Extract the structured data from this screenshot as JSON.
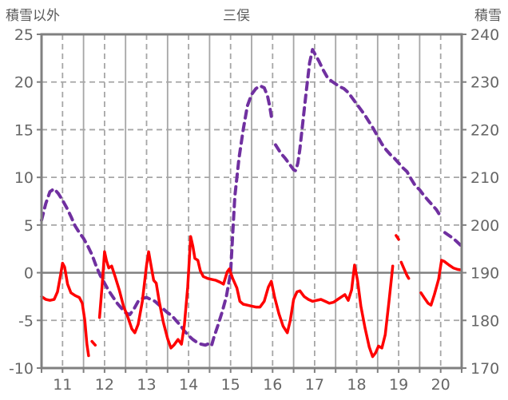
{
  "header": {
    "left_axis_caption": "積雪以外",
    "title": "三俣",
    "right_axis_caption": "積雪"
  },
  "colors": {
    "series_other": "#ff0000",
    "series_snow": "#7030a0",
    "grid": "#a6a6a6",
    "axis_frame": "#808080",
    "zero_line": "#808080",
    "text": "#666666"
  },
  "chart_data": {
    "type": "line",
    "title": "三俣",
    "grid": {
      "vertical_solid_every_day": true,
      "vertical_dashed_at_half_day": true,
      "horizontal_dashed": true,
      "zero_line_solid": true
    },
    "x_axis": {
      "range": [
        11,
        21
      ],
      "tick_labels": [
        11,
        12,
        13,
        14,
        15,
        16,
        17,
        18,
        19,
        20
      ],
      "minor_tick_step": 0.5
    },
    "y_left": {
      "label": "積雪以外",
      "range": [
        -10,
        25
      ],
      "ticks": [
        25,
        20,
        15,
        10,
        5,
        0,
        -5,
        -10
      ]
    },
    "y_right": {
      "label": "積雪",
      "range": [
        170,
        240
      ],
      "ticks": [
        240,
        230,
        220,
        210,
        200,
        190,
        180,
        170
      ]
    },
    "series": [
      {
        "name": "積雪",
        "axis": "right",
        "color": "#7030a0",
        "style": "dashed",
        "width": 4,
        "segments": [
          [
            [
              11.0,
              201
            ],
            [
              11.1,
              204.5
            ],
            [
              11.2,
              207
            ],
            [
              11.3,
              207.6
            ],
            [
              11.4,
              206.6
            ],
            [
              11.5,
              205.2
            ],
            [
              11.6,
              203.6
            ],
            [
              11.7,
              201.8
            ],
            [
              11.8,
              199.8
            ],
            [
              11.9,
              198.4
            ],
            [
              12.0,
              197.2
            ],
            [
              12.1,
              195.6
            ],
            [
              12.2,
              193.8
            ],
            [
              12.3,
              191.4
            ],
            [
              12.4,
              189.4
            ],
            [
              12.5,
              187.8
            ],
            [
              12.6,
              186.2
            ],
            [
              12.7,
              184.9
            ],
            [
              12.8,
              183.6
            ],
            [
              12.9,
              182.6
            ],
            [
              13.0,
              181.6
            ],
            [
              13.1,
              181.2
            ],
            [
              13.2,
              182.4
            ],
            [
              13.3,
              184
            ],
            [
              13.4,
              184.6
            ],
            [
              13.5,
              184.8
            ],
            [
              13.6,
              184.4
            ],
            [
              13.7,
              184
            ],
            [
              13.8,
              183.2
            ],
            [
              13.9,
              182.4
            ],
            [
              14.0,
              181.6
            ],
            [
              14.1,
              181
            ],
            [
              14.2,
              180
            ],
            [
              14.3,
              179
            ],
            [
              14.4,
              177.8
            ],
            [
              14.5,
              176.8
            ],
            [
              14.6,
              176
            ],
            [
              14.7,
              175.4
            ],
            [
              14.8,
              175
            ],
            [
              14.9,
              174.8
            ],
            [
              15.0,
              175.2
            ],
            [
              15.05,
              174.8
            ],
            [
              15.1,
              176.4
            ],
            [
              15.2,
              179
            ],
            [
              15.3,
              181.8
            ],
            [
              15.4,
              185
            ],
            [
              15.5,
              190
            ],
            [
              15.55,
              198
            ],
            [
              15.6,
              206
            ],
            [
              15.7,
              214
            ],
            [
              15.8,
              220
            ],
            [
              15.9,
              225
            ],
            [
              16.0,
              227.4
            ],
            [
              16.1,
              228.6
            ],
            [
              16.2,
              229.2
            ],
            [
              16.3,
              228.8
            ],
            [
              16.38,
              227
            ],
            [
              16.43,
              225
            ],
            [
              16.47,
              222.8
            ]
          ],
          [
            [
              16.57,
              216.8
            ],
            [
              16.7,
              215
            ],
            [
              16.8,
              214
            ],
            [
              16.9,
              212.8
            ],
            [
              17.0,
              211.6
            ],
            [
              17.05,
              211.4
            ],
            [
              17.1,
              213
            ],
            [
              17.15,
              216
            ],
            [
              17.2,
              220
            ],
            [
              17.3,
              228
            ],
            [
              17.38,
              234
            ],
            [
              17.45,
              236.8
            ],
            [
              17.5,
              236
            ],
            [
              17.6,
              234.4
            ],
            [
              17.7,
              232.6
            ],
            [
              17.8,
              231
            ],
            [
              17.9,
              230.2
            ],
            [
              18.0,
              229.6
            ],
            [
              18.1,
              229
            ],
            [
              18.2,
              228.6
            ],
            [
              18.3,
              227.8
            ],
            [
              18.4,
              226.6
            ],
            [
              18.5,
              225.4
            ],
            [
              18.6,
              224.2
            ],
            [
              18.7,
              223
            ],
            [
              18.8,
              221.6
            ],
            [
              18.9,
              220.2
            ],
            [
              19.0,
              218.6
            ],
            [
              19.1,
              217
            ],
            [
              19.2,
              215.8
            ],
            [
              19.3,
              214.8
            ],
            [
              19.4,
              214
            ],
            [
              19.5,
              213
            ],
            [
              19.6,
              212
            ],
            [
              19.7,
              211.2
            ],
            [
              19.8,
              209.6
            ],
            [
              19.9,
              208.2
            ],
            [
              20.0,
              207.4
            ],
            [
              20.1,
              206.2
            ],
            [
              20.2,
              205.2
            ],
            [
              20.3,
              204.2
            ],
            [
              20.4,
              203.2
            ],
            [
              20.5,
              201.8
            ]
          ],
          [
            [
              20.6,
              198.4
            ],
            [
              20.7,
              197.8
            ],
            [
              20.8,
              197.2
            ],
            [
              20.9,
              196.4
            ],
            [
              20.97,
              195.8
            ]
          ]
        ]
      },
      {
        "name": "積雪以外",
        "axis": "left",
        "color": "#ff0000",
        "style": "solid",
        "width": 3.5,
        "segments": [
          [
            [
              11.0,
              -2.5
            ],
            [
              11.1,
              -2.8
            ],
            [
              11.2,
              -2.9
            ],
            [
              11.3,
              -2.8
            ],
            [
              11.38,
              -2.0
            ],
            [
              11.45,
              -0.3
            ],
            [
              11.5,
              1.0
            ],
            [
              11.55,
              0.6
            ],
            [
              11.62,
              -1.2
            ],
            [
              11.7,
              -2.1
            ],
            [
              11.8,
              -2.4
            ],
            [
              11.9,
              -2.6
            ],
            [
              11.97,
              -3.2
            ],
            [
              12.03,
              -5.0
            ],
            [
              12.08,
              -7.5
            ],
            [
              12.12,
              -8.7
            ]
          ],
          [
            [
              12.2,
              -7.2
            ],
            [
              12.28,
              -7.6
            ]
          ],
          [
            [
              12.38,
              -4.7
            ],
            [
              12.44,
              -1.5
            ],
            [
              12.5,
              2.2
            ],
            [
              12.55,
              1.2
            ],
            [
              12.6,
              0.5
            ],
            [
              12.67,
              0.7
            ],
            [
              12.75,
              -0.4
            ],
            [
              12.85,
              -1.8
            ],
            [
              12.95,
              -3.5
            ],
            [
              13.05,
              -4.6
            ],
            [
              13.15,
              -5.9
            ],
            [
              13.22,
              -6.3
            ],
            [
              13.3,
              -5.4
            ],
            [
              13.4,
              -3.0
            ],
            [
              13.5,
              0.8
            ],
            [
              13.55,
              2.2
            ],
            [
              13.6,
              0.9
            ],
            [
              13.67,
              -0.8
            ],
            [
              13.73,
              -1.1
            ],
            [
              13.8,
              -3.0
            ],
            [
              13.9,
              -5.2
            ],
            [
              14.0,
              -6.9
            ],
            [
              14.08,
              -7.9
            ],
            [
              14.15,
              -7.6
            ],
            [
              14.25,
              -7.0
            ],
            [
              14.33,
              -7.5
            ],
            [
              14.4,
              -5.5
            ],
            [
              14.48,
              -1.5
            ],
            [
              14.55,
              3.8
            ],
            [
              14.6,
              2.8
            ],
            [
              14.65,
              1.5
            ],
            [
              14.72,
              1.3
            ],
            [
              14.78,
              0.2
            ],
            [
              14.85,
              -0.4
            ],
            [
              14.95,
              -0.6
            ],
            [
              15.05,
              -0.7
            ],
            [
              15.15,
              -0.8
            ],
            [
              15.25,
              -1.0
            ],
            [
              15.33,
              -1.2
            ],
            [
              15.42,
              0.1
            ],
            [
              15.47,
              0.4
            ],
            [
              15.55,
              -0.6
            ],
            [
              15.65,
              -1.6
            ],
            [
              15.72,
              -3.0
            ],
            [
              15.8,
              -3.3
            ],
            [
              15.9,
              -3.4
            ],
            [
              16.0,
              -3.5
            ],
            [
              16.1,
              -3.6
            ],
            [
              16.2,
              -3.6
            ],
            [
              16.3,
              -3.0
            ],
            [
              16.4,
              -1.5
            ],
            [
              16.47,
              -0.9
            ],
            [
              16.55,
              -2.6
            ],
            [
              16.65,
              -4.3
            ],
            [
              16.75,
              -5.6
            ],
            [
              16.85,
              -6.3
            ],
            [
              16.92,
              -5.0
            ],
            [
              17.0,
              -2.8
            ],
            [
              17.08,
              -2.0
            ],
            [
              17.15,
              -1.9
            ],
            [
              17.25,
              -2.5
            ],
            [
              17.35,
              -2.8
            ],
            [
              17.45,
              -3.0
            ],
            [
              17.55,
              -2.9
            ],
            [
              17.65,
              -2.8
            ],
            [
              17.75,
              -3.0
            ],
            [
              17.85,
              -3.2
            ],
            [
              17.95,
              -3.1
            ],
            [
              18.05,
              -2.8
            ],
            [
              18.15,
              -2.5
            ],
            [
              18.22,
              -2.3
            ],
            [
              18.3,
              -2.9
            ],
            [
              18.38,
              -1.8
            ],
            [
              18.45,
              0.8
            ],
            [
              18.52,
              -0.8
            ],
            [
              18.6,
              -3.5
            ],
            [
              18.7,
              -5.8
            ],
            [
              18.8,
              -7.8
            ],
            [
              18.88,
              -8.8
            ],
            [
              18.95,
              -8.4
            ],
            [
              19.02,
              -7.7
            ],
            [
              19.1,
              -7.9
            ],
            [
              19.18,
              -6.5
            ],
            [
              19.27,
              -3.0
            ],
            [
              19.33,
              -0.5
            ],
            [
              19.36,
              0.7
            ]
          ],
          [
            [
              19.44,
              3.9
            ],
            [
              19.5,
              3.5
            ]
          ],
          [
            [
              19.56,
              1.1
            ],
            [
              19.63,
              0.4
            ],
            [
              19.7,
              -0.3
            ],
            [
              19.74,
              -0.6
            ]
          ],
          [
            [
              20.03,
              -2.1
            ],
            [
              20.12,
              -2.7
            ],
            [
              20.2,
              -3.2
            ],
            [
              20.27,
              -3.4
            ],
            [
              20.35,
              -2.3
            ],
            [
              20.45,
              -0.7
            ],
            [
              20.52,
              1.3
            ],
            [
              20.58,
              1.2
            ],
            [
              20.7,
              0.8
            ],
            [
              20.8,
              0.5
            ],
            [
              20.9,
              0.35
            ],
            [
              20.97,
              0.3
            ]
          ]
        ]
      }
    ]
  }
}
